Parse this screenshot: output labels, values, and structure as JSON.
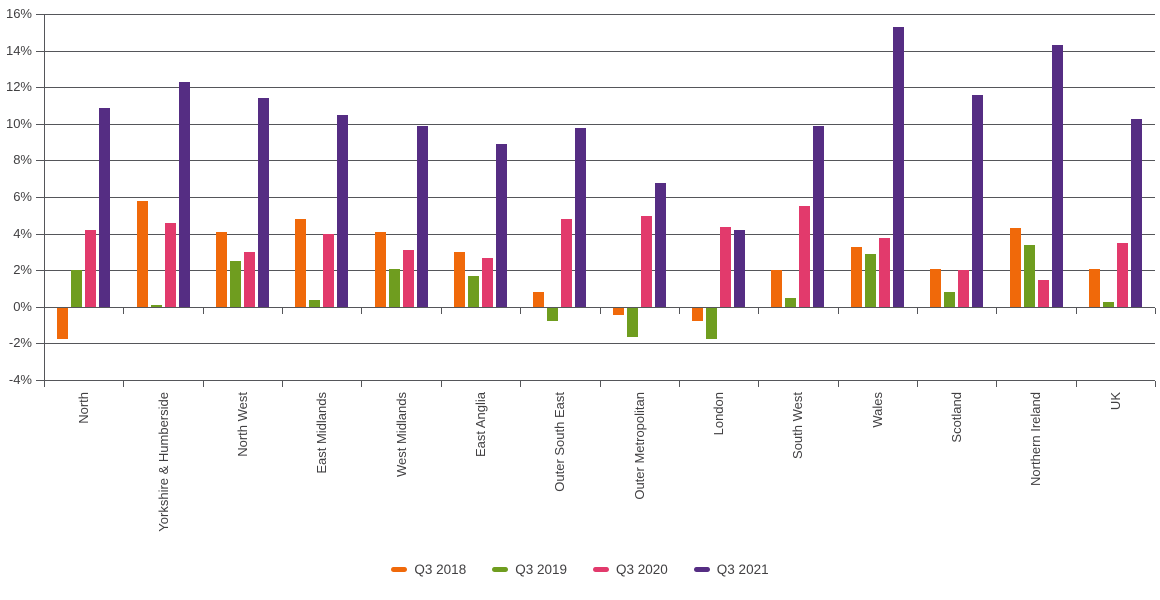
{
  "chart_data": {
    "type": "bar",
    "title": "",
    "xlabel": "",
    "ylabel": "",
    "categories": [
      "North",
      "Yorkshire & Humberside",
      "North West",
      "East Midlands",
      "West Midlands",
      "East Anglia",
      "Outer South East",
      "Outer Metropolitan",
      "London",
      "South West",
      "Wales",
      "Scotland",
      "Northern Ireland",
      "UK"
    ],
    "series": [
      {
        "name": "Q3 2018",
        "color": "#F0690A",
        "values": [
          -1.7,
          5.8,
          4.1,
          4.8,
          4.1,
          3.0,
          0.8,
          -0.4,
          -0.7,
          2.0,
          3.3,
          2.1,
          4.3,
          2.1
        ]
      },
      {
        "name": "Q3 2019",
        "color": "#6F9D1F",
        "values": [
          2.0,
          0.1,
          2.5,
          0.4,
          2.1,
          1.7,
          -0.7,
          -1.6,
          -1.7,
          0.5,
          2.9,
          0.8,
          3.4,
          0.3
        ]
      },
      {
        "name": "Q3 2020",
        "color": "#E23A6C",
        "values": [
          4.2,
          4.6,
          3.0,
          4.0,
          3.1,
          2.7,
          4.8,
          5.0,
          4.4,
          5.5,
          3.8,
          2.0,
          1.5,
          3.5
        ]
      },
      {
        "name": "Q3 2021",
        "color": "#552D83",
        "values": [
          10.9,
          12.3,
          11.4,
          10.5,
          9.9,
          8.9,
          9.8,
          6.8,
          4.2,
          9.9,
          15.3,
          11.6,
          14.3,
          10.3
        ]
      }
    ],
    "ylim": [
      -4,
      16
    ],
    "y_tick_step": 2,
    "y_tick_labels": [
      "16%",
      "14%",
      "12%",
      "10%",
      "8%",
      "6%",
      "4%",
      "2%",
      "0%",
      "-2%",
      "-4%"
    ],
    "grid": true,
    "legend_position": "bottom",
    "axis_color": "#55565A",
    "text_color": "#414042",
    "value_suffix": "%"
  }
}
